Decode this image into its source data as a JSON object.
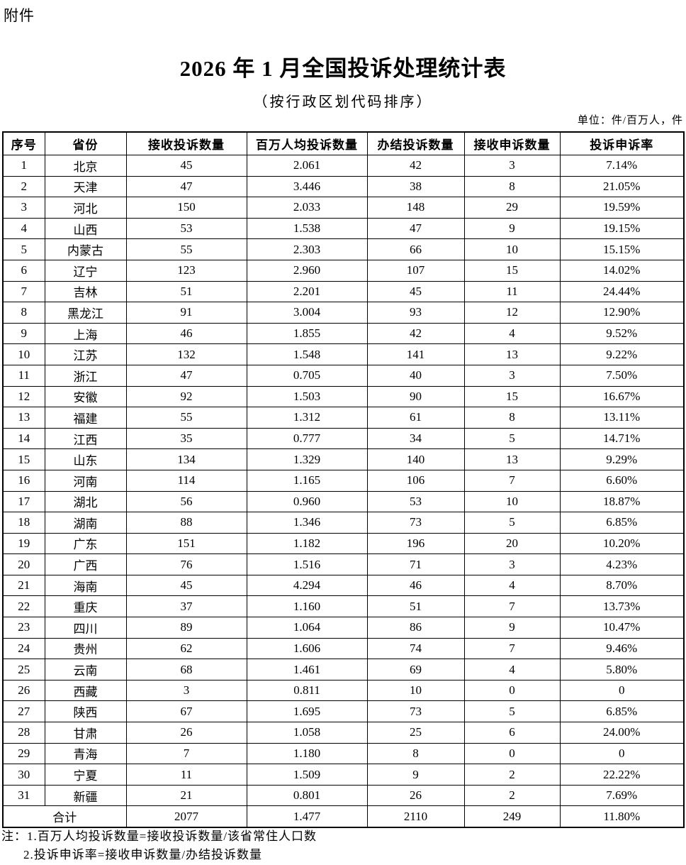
{
  "page": {
    "attachment_label": "附件",
    "title": "2026 年 1 月全国投诉处理统计表",
    "subtitle": "（按行政区划代码排序）",
    "unit_note": "单位：件/百万人，件"
  },
  "table": {
    "columns": [
      "序号",
      "省份",
      "接收投诉数量",
      "百万人均投诉数量",
      "办结投诉数量",
      "接收申诉数量",
      "投诉申诉率"
    ],
    "rows": [
      [
        "1",
        "北京",
        "45",
        "2.061",
        "42",
        "3",
        "7.14%"
      ],
      [
        "2",
        "天津",
        "47",
        "3.446",
        "38",
        "8",
        "21.05%"
      ],
      [
        "3",
        "河北",
        "150",
        "2.033",
        "148",
        "29",
        "19.59%"
      ],
      [
        "4",
        "山西",
        "53",
        "1.538",
        "47",
        "9",
        "19.15%"
      ],
      [
        "5",
        "内蒙古",
        "55",
        "2.303",
        "66",
        "10",
        "15.15%"
      ],
      [
        "6",
        "辽宁",
        "123",
        "2.960",
        "107",
        "15",
        "14.02%"
      ],
      [
        "7",
        "吉林",
        "51",
        "2.201",
        "45",
        "11",
        "24.44%"
      ],
      [
        "8",
        "黑龙江",
        "91",
        "3.004",
        "93",
        "12",
        "12.90%"
      ],
      [
        "9",
        "上海",
        "46",
        "1.855",
        "42",
        "4",
        "9.52%"
      ],
      [
        "10",
        "江苏",
        "132",
        "1.548",
        "141",
        "13",
        "9.22%"
      ],
      [
        "11",
        "浙江",
        "47",
        "0.705",
        "40",
        "3",
        "7.50%"
      ],
      [
        "12",
        "安徽",
        "92",
        "1.503",
        "90",
        "15",
        "16.67%"
      ],
      [
        "13",
        "福建",
        "55",
        "1.312",
        "61",
        "8",
        "13.11%"
      ],
      [
        "14",
        "江西",
        "35",
        "0.777",
        "34",
        "5",
        "14.71%"
      ],
      [
        "15",
        "山东",
        "134",
        "1.329",
        "140",
        "13",
        "9.29%"
      ],
      [
        "16",
        "河南",
        "114",
        "1.165",
        "106",
        "7",
        "6.60%"
      ],
      [
        "17",
        "湖北",
        "56",
        "0.960",
        "53",
        "10",
        "18.87%"
      ],
      [
        "18",
        "湖南",
        "88",
        "1.346",
        "73",
        "5",
        "6.85%"
      ],
      [
        "19",
        "广东",
        "151",
        "1.182",
        "196",
        "20",
        "10.20%"
      ],
      [
        "20",
        "广西",
        "76",
        "1.516",
        "71",
        "3",
        "4.23%"
      ],
      [
        "21",
        "海南",
        "45",
        "4.294",
        "46",
        "4",
        "8.70%"
      ],
      [
        "22",
        "重庆",
        "37",
        "1.160",
        "51",
        "7",
        "13.73%"
      ],
      [
        "23",
        "四川",
        "89",
        "1.064",
        "86",
        "9",
        "10.47%"
      ],
      [
        "24",
        "贵州",
        "62",
        "1.606",
        "74",
        "7",
        "9.46%"
      ],
      [
        "25",
        "云南",
        "68",
        "1.461",
        "69",
        "4",
        "5.80%"
      ],
      [
        "26",
        "西藏",
        "3",
        "0.811",
        "10",
        "0",
        "0"
      ],
      [
        "27",
        "陕西",
        "67",
        "1.695",
        "73",
        "5",
        "6.85%"
      ],
      [
        "28",
        "甘肃",
        "26",
        "1.058",
        "25",
        "6",
        "24.00%"
      ],
      [
        "29",
        "青海",
        "7",
        "1.180",
        "8",
        "0",
        "0"
      ],
      [
        "30",
        "宁夏",
        "11",
        "1.509",
        "9",
        "2",
        "22.22%"
      ],
      [
        "31",
        "新疆",
        "21",
        "0.801",
        "26",
        "2",
        "7.69%"
      ]
    ],
    "total_row": {
      "label": "合计",
      "values": [
        "2077",
        "1.477",
        "2110",
        "249",
        "11.80%"
      ]
    }
  },
  "notes": {
    "line1": "注：1.百万人均投诉数量=接收投诉数量/该省常住人口数",
    "line2": "2.投诉申诉率=接收申诉数量/办结投诉数量"
  }
}
